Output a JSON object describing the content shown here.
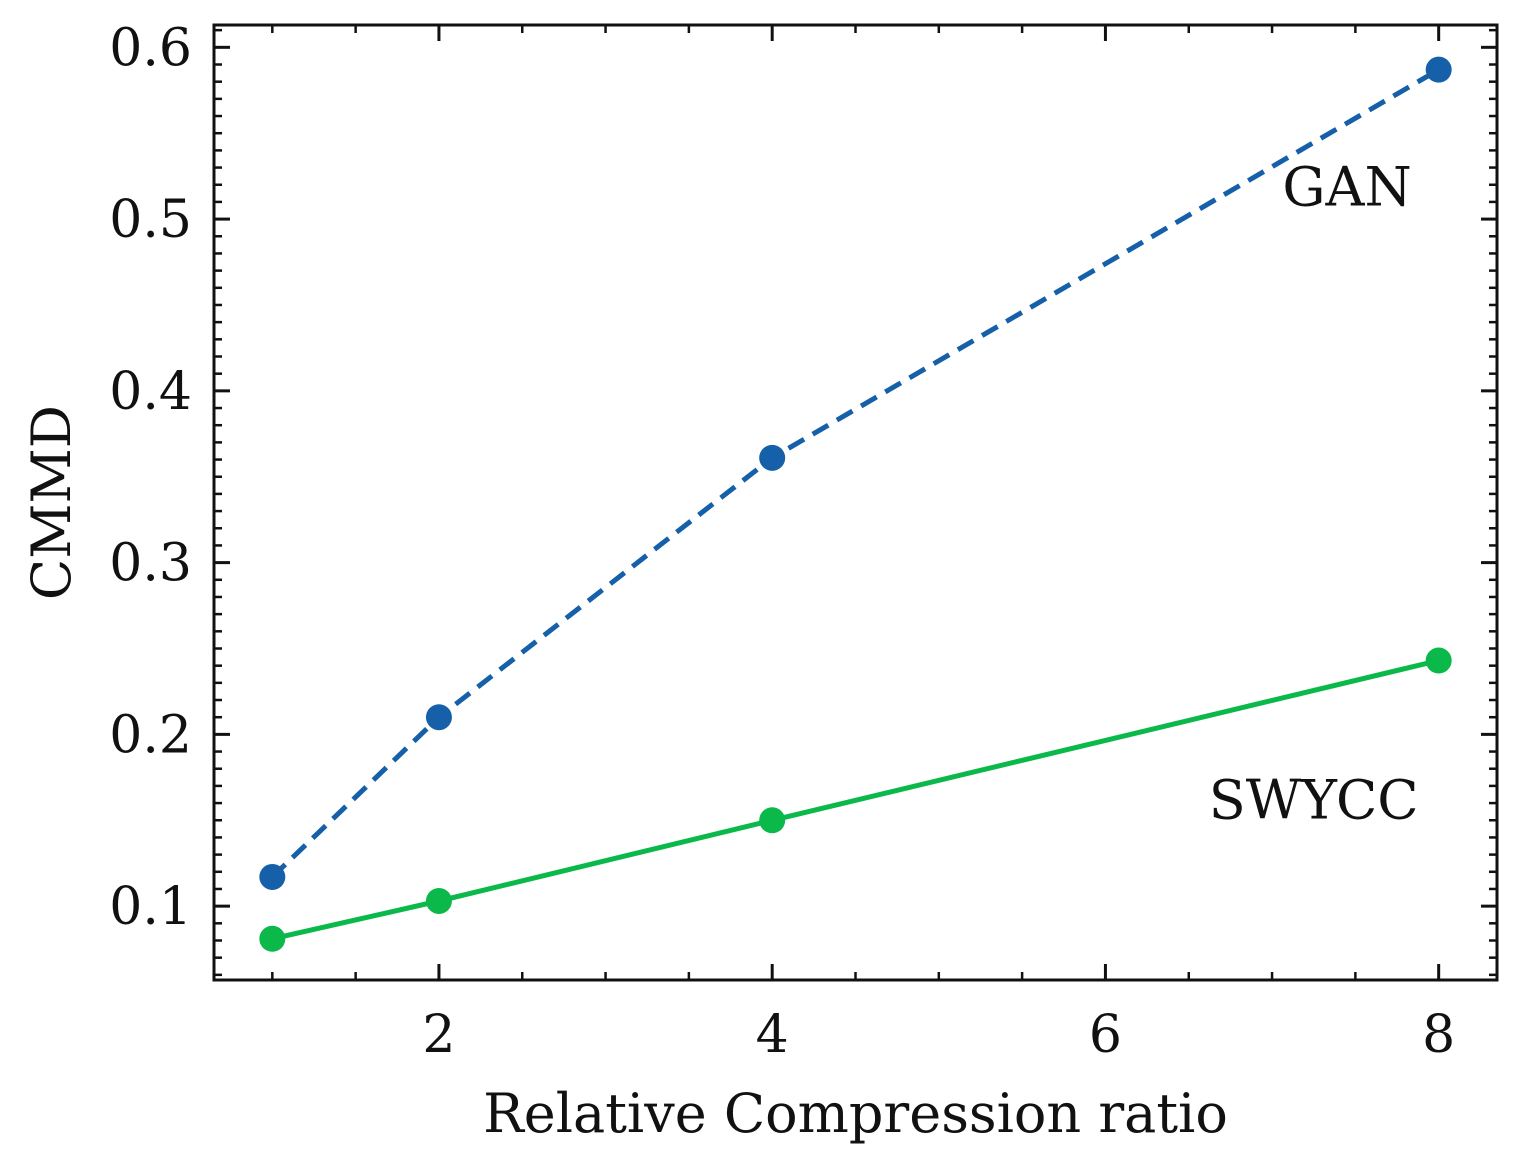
{
  "chart_data": {
    "type": "line",
    "title": "",
    "xlabel": "Relative Compression ratio",
    "ylabel": "CMMD",
    "xlim": [
      0.65,
      8.35
    ],
    "ylim": [
      0.057,
      0.613
    ],
    "grid": false,
    "legend": "none",
    "xticks": [
      2,
      4,
      6,
      8
    ],
    "xtick_labels": [
      "2",
      "4",
      "6",
      "8"
    ],
    "yticks": [
      0.1,
      0.2,
      0.3,
      0.4,
      0.5,
      0.6
    ],
    "ytick_labels": [
      "0.1",
      "0.2",
      "0.3",
      "0.4",
      "0.5",
      "0.6"
    ],
    "series": [
      {
        "name": "GAN",
        "color": "#1560a8",
        "linestyle": "dashed",
        "x": [
          1,
          2,
          4,
          8
        ],
        "values": [
          0.117,
          0.21,
          0.361,
          0.587
        ]
      },
      {
        "name": "SWYCC",
        "color": "#0bb84a",
        "linestyle": "solid",
        "x": [
          1,
          2,
          4,
          8
        ],
        "values": [
          0.081,
          0.103,
          0.15,
          0.243
        ]
      }
    ],
    "annotations": [
      {
        "text": "GAN",
        "series": "GAN",
        "anchor_x": 7.45,
        "anchor_y": 0.508
      },
      {
        "text": "SWYCC",
        "series": "SWYCC",
        "anchor_x": 7.25,
        "anchor_y": 0.151
      }
    ]
  }
}
